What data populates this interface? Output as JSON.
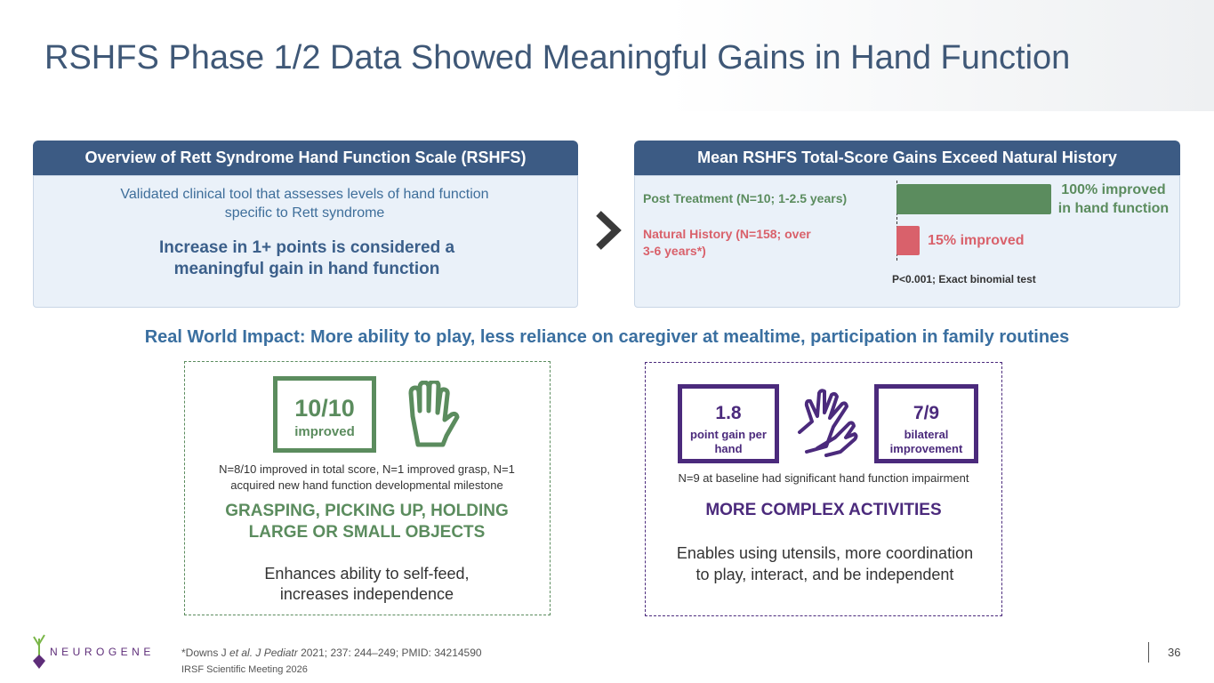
{
  "title": "RSHFS Phase 1/2 Data Showed Meaningful Gains in Hand Function",
  "overview": {
    "heading": "Overview of Rett Syndrome Hand Function Scale (RSHFS)",
    "description": "Validated clinical tool that assesses levels of hand function specific to Rett syndrome",
    "highlight": "Increase in 1+ points is considered a meaningful gain in hand function"
  },
  "gains": {
    "heading": "Mean RSHFS Total-Score Gains Exceed Natural History",
    "chart_data": {
      "type": "bar",
      "categories": [
        "Post Treatment (N=10; 1-2.5 years)",
        "Natural History (N=158; over 3-6 years*)"
      ],
      "values": [
        100,
        15
      ],
      "value_labels": [
        "100% improved in hand function",
        "15% improved"
      ],
      "colors": [
        "#5b8c5e",
        "#d9616b"
      ],
      "xlim": [
        0,
        100
      ],
      "note": "P<0.001; Exact binomial test"
    }
  },
  "impact": {
    "heading": "Real World Impact: More ability to play, less reliance on caregiver at mealtime, participation in family routines",
    "left": {
      "stat_value": "10/10",
      "stat_label": "improved",
      "note": "N=8/10 improved in total score, N=1 improved grasp, N=1 acquired new hand function developmental milestone",
      "heading": "GRASPING, PICKING UP, HOLDING LARGE OR SMALL OBJECTS",
      "description": "Enhances ability to self-feed, increases independence"
    },
    "right": {
      "stats": [
        {
          "value": "1.8",
          "label": "point gain per hand"
        },
        {
          "value": "7/9",
          "label": "bilateral improvement"
        }
      ],
      "note": "N=9 at baseline had significant hand function impairment",
      "heading": "MORE COMPLEX ACTIVITIES",
      "description": "Enables using utensils, more coordination to play, interact, and be independent"
    }
  },
  "footer": {
    "logo": "NEUROGENE",
    "footnote": [
      "*Downs J ",
      "et al. J Pediatr",
      " 2021; 237: 244–249; PMID: 34214590"
    ],
    "meeting": "IRSF Scientific Meeting 2026",
    "page_number": "36"
  }
}
